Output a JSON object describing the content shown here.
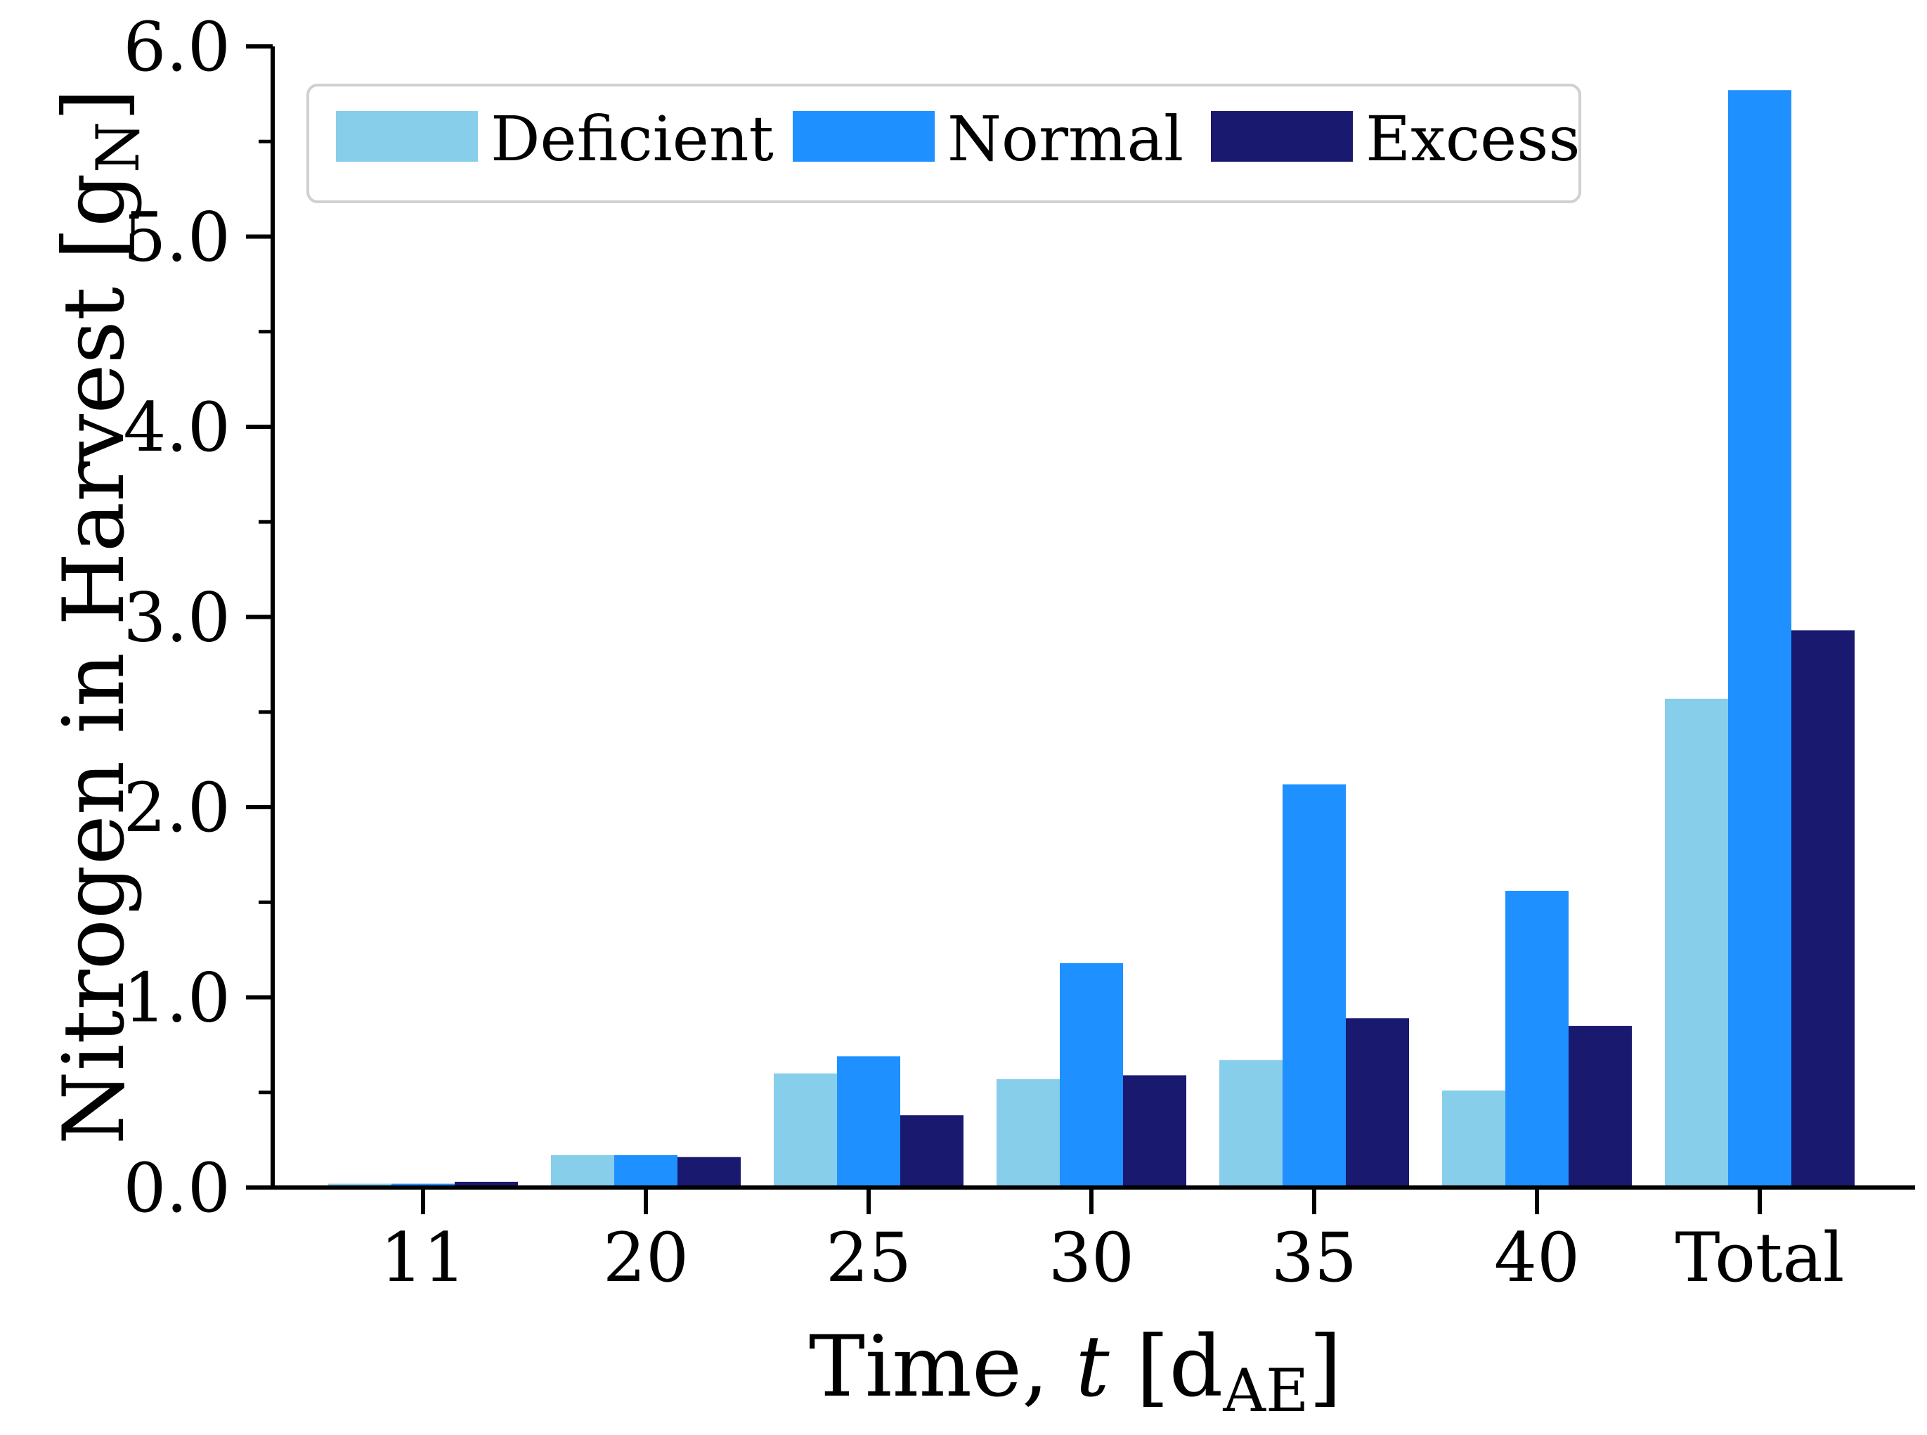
{
  "chart_data": {
    "type": "bar",
    "categories": [
      "11",
      "20",
      "25",
      "30",
      "35",
      "40",
      "Total"
    ],
    "series": [
      {
        "name": "Deficient",
        "color": "#87CEEB",
        "values": [
          0.02,
          0.17,
          0.6,
          0.57,
          0.67,
          0.51,
          2.57
        ]
      },
      {
        "name": "Normal",
        "color": "#1E90FF",
        "values": [
          0.02,
          0.17,
          0.69,
          1.18,
          2.12,
          1.56,
          5.77
        ]
      },
      {
        "name": "Excess",
        "color": "#191970",
        "values": [
          0.03,
          0.16,
          0.38,
          0.59,
          0.89,
          0.85,
          2.93
        ]
      }
    ],
    "xlabel": {
      "prefix": "Time, ",
      "var": "t",
      "unit_open": " [d",
      "unit_sub": "AE",
      "unit_close": "]"
    },
    "ylabel": {
      "main": "Nitrogen in Harvest [g",
      "sub": "N",
      "close": "]"
    },
    "ylim": [
      0,
      6.0
    ],
    "yticks": [
      "0.0",
      "1.0",
      "2.0",
      "3.0",
      "4.0",
      "5.0",
      "6.0"
    ],
    "yticks_values": [
      0,
      1,
      2,
      3,
      4,
      5,
      6
    ],
    "y_minor_step": 0.5,
    "grid": false,
    "legend_position": "top-left"
  }
}
